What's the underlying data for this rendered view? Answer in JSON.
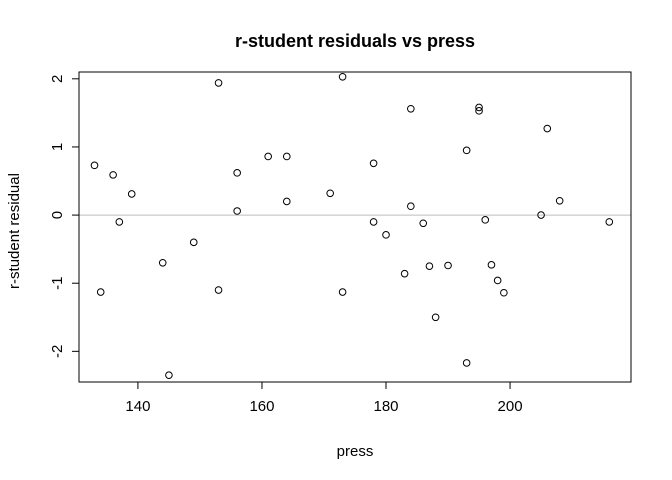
{
  "chart_data": {
    "type": "scatter",
    "title": "r-student residuals vs press",
    "xlabel": "press",
    "ylabel": "r-student residual",
    "xlim": [
      130.5,
      219.5
    ],
    "ylim": [
      -2.45,
      2.1
    ],
    "xticks": [
      140,
      160,
      180,
      200
    ],
    "yticks": [
      -2,
      -1,
      0,
      1,
      2
    ],
    "reference_line": {
      "y": 0,
      "color": "#bebebe"
    },
    "grid": false,
    "legend": "none",
    "marker": "open-circle",
    "points": [
      {
        "x": 133,
        "y": 0.73
      },
      {
        "x": 134,
        "y": -1.13
      },
      {
        "x": 136,
        "y": 0.59
      },
      {
        "x": 137,
        "y": -0.1
      },
      {
        "x": 139,
        "y": 0.31
      },
      {
        "x": 144,
        "y": -0.7
      },
      {
        "x": 145,
        "y": -2.35
      },
      {
        "x": 149,
        "y": -0.4
      },
      {
        "x": 153,
        "y": 1.94
      },
      {
        "x": 153,
        "y": -1.1
      },
      {
        "x": 156,
        "y": 0.62
      },
      {
        "x": 156,
        "y": 0.06
      },
      {
        "x": 161,
        "y": 0.86
      },
      {
        "x": 164,
        "y": 0.86
      },
      {
        "x": 164,
        "y": 0.2
      },
      {
        "x": 171,
        "y": 0.32
      },
      {
        "x": 173,
        "y": 2.03
      },
      {
        "x": 173,
        "y": -1.13
      },
      {
        "x": 178,
        "y": 0.76
      },
      {
        "x": 178,
        "y": -0.1
      },
      {
        "x": 180,
        "y": -0.29
      },
      {
        "x": 183,
        "y": -0.86
      },
      {
        "x": 184,
        "y": 1.56
      },
      {
        "x": 184,
        "y": 0.13
      },
      {
        "x": 186,
        "y": -0.12
      },
      {
        "x": 187,
        "y": -0.75
      },
      {
        "x": 188,
        "y": -1.5
      },
      {
        "x": 190,
        "y": -0.74
      },
      {
        "x": 193,
        "y": 0.95
      },
      {
        "x": 193,
        "y": -2.17
      },
      {
        "x": 195,
        "y": 1.58
      },
      {
        "x": 195,
        "y": 1.53
      },
      {
        "x": 196,
        "y": -0.07
      },
      {
        "x": 197,
        "y": -0.73
      },
      {
        "x": 198,
        "y": -0.96
      },
      {
        "x": 199,
        "y": -1.14
      },
      {
        "x": 205,
        "y": 0.0
      },
      {
        "x": 206,
        "y": 1.27
      },
      {
        "x": 208,
        "y": 0.21
      },
      {
        "x": 216,
        "y": -0.1
      }
    ]
  }
}
